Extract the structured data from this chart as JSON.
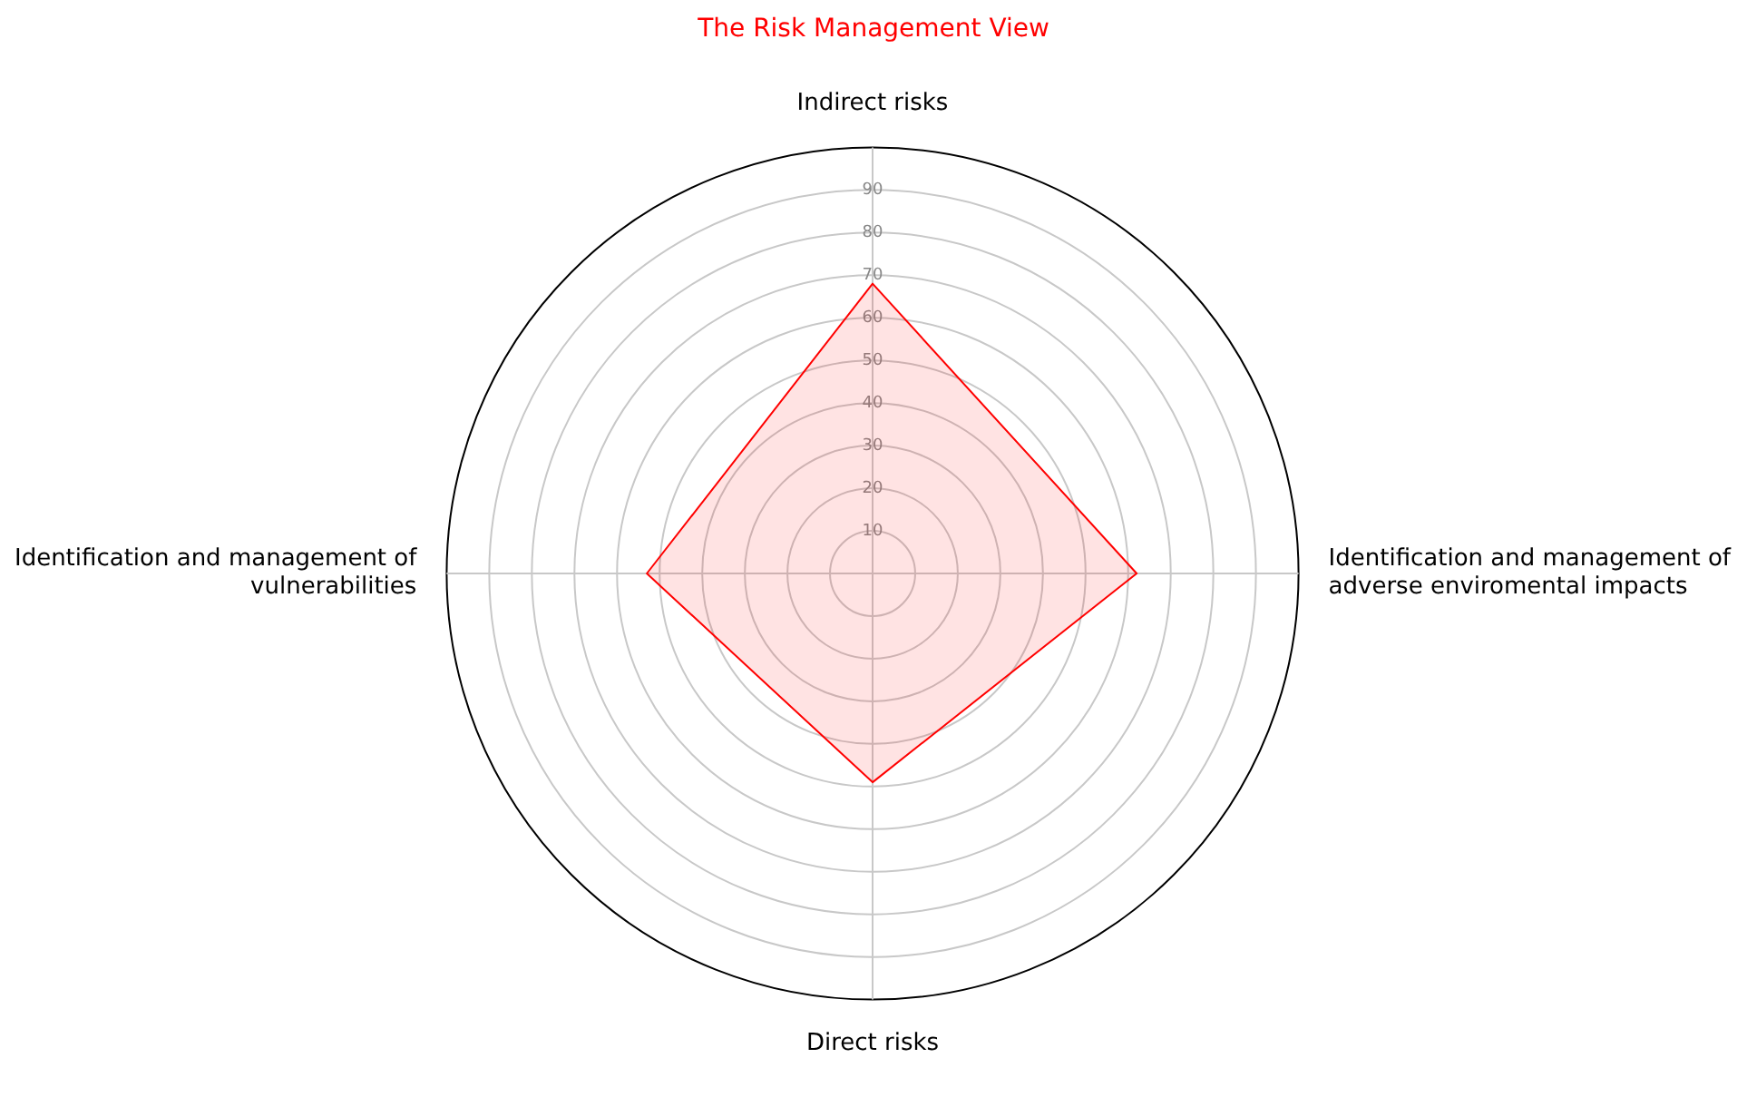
{
  "chart_data": {
    "type": "radar",
    "title": "The Risk Management View",
    "categories": [
      "Indirect risks",
      "Identification and management of adverse enviromental impacts",
      "Direct risks",
      "Identification and management of vulnerabilities"
    ],
    "series": [
      {
        "color": "#ff0000",
        "values": [
          68,
          62,
          49,
          53
        ]
      }
    ],
    "ylim": [
      0,
      100
    ],
    "yticks": [
      10,
      20,
      30,
      40,
      50,
      60,
      70,
      80,
      90
    ],
    "grid": true,
    "legend": false,
    "marker": "none",
    "line_style": "solid"
  }
}
